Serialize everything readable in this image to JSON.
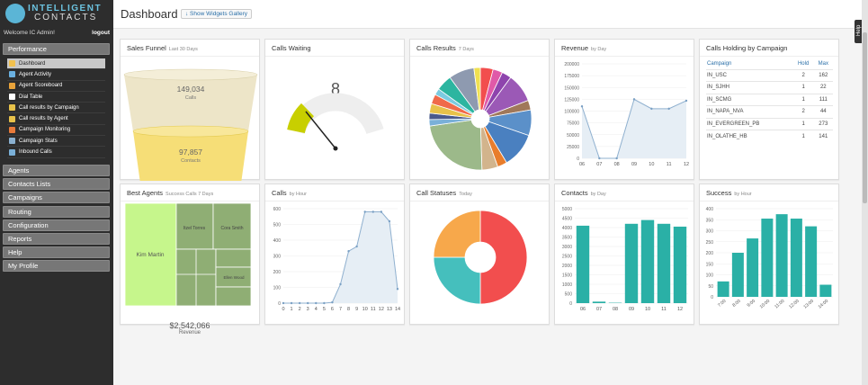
{
  "brand": {
    "line1": "INTELLIGENT",
    "line2": "CONTACTS"
  },
  "user": {
    "welcome": "Welcome IC Admin!",
    "logout": "logout"
  },
  "nav": {
    "performance": "Performance",
    "sub": [
      {
        "label": "Dashboard",
        "active": true,
        "icon": "dashboard-icon",
        "color": "#f2c14e"
      },
      {
        "label": "Agent Activity",
        "icon": "agent-icon",
        "color": "#6ab0e0"
      },
      {
        "label": "Agent Scoreboard",
        "icon": "scoreboard-icon",
        "color": "#e8a33a"
      },
      {
        "label": "Dial Table",
        "icon": "table-icon",
        "color": "#ffffff"
      },
      {
        "label": "Call results by Campaign",
        "icon": "chart-icon",
        "color": "#e8c24a"
      },
      {
        "label": "Call results by Agent",
        "icon": "chart-icon",
        "color": "#e8c24a"
      },
      {
        "label": "Campaign Monitoring",
        "icon": "monitor-icon",
        "color": "#e87a3a"
      },
      {
        "label": "Campaign Stats",
        "icon": "stats-icon",
        "color": "#8ab0d0"
      },
      {
        "label": "Inbound Calls",
        "icon": "inbound-icon",
        "color": "#7ab0d8"
      }
    ],
    "sections": [
      "Agents",
      "Contacts Lists",
      "Campaigns",
      "Routing",
      "Configuration",
      "Reports",
      "Help",
      "My Profile"
    ]
  },
  "page": {
    "title": "Dashboard",
    "show_widgets": "↓ Show Widgets Gallery",
    "help_tab": "Help"
  },
  "widgets": {
    "funnel": {
      "title": "Sales Funnel",
      "sub": "Last 30 Days",
      "calls_value": "149,034",
      "calls_label": "Calls",
      "contacts_value": "97,857",
      "contacts_label": "Contacts",
      "revenue_value": "$2,542,066",
      "revenue_label": "Revenue"
    },
    "waiting": {
      "title": "Calls Waiting",
      "value": "8"
    },
    "results": {
      "title": "Calls Results",
      "sub": "7 Days"
    },
    "revenue": {
      "title": "Revenue",
      "sub": "by Day"
    },
    "holding": {
      "title": "Calls Holding by Campaign",
      "cols": [
        "Campaign",
        "Hold",
        "Max"
      ],
      "rows": [
        [
          "IN_USC",
          "2",
          "162"
        ],
        [
          "IN_SJHH",
          "1",
          "22"
        ],
        [
          "IN_SCMG",
          "1",
          "111"
        ],
        [
          "IN_NAPA_NVA",
          "2",
          "44"
        ],
        [
          "IN_EVERGREEN_PB",
          "1",
          "273"
        ],
        [
          "IN_OLATHE_HB",
          "1",
          "141"
        ]
      ]
    },
    "best": {
      "title": "Best Agents",
      "sub": "Success Calls 7 Days",
      "agents": [
        "Kim Martin",
        "Itzel Torres",
        "Cora Smith",
        "Ellen Wood"
      ]
    },
    "calls_hour": {
      "title": "Calls",
      "sub": "by Hour"
    },
    "statuses": {
      "title": "Call Statuses",
      "sub": "Today"
    },
    "contacts": {
      "title": "Contacts",
      "sub": "by Day"
    },
    "success": {
      "title": "Success",
      "sub": "by Hour"
    }
  },
  "chart_data": [
    {
      "type": "pie",
      "title": "Calls Results",
      "values": [
        4,
        3,
        3,
        9,
        3,
        8,
        11,
        3,
        5,
        23,
        2,
        2,
        3,
        3,
        2,
        5,
        8,
        2
      ],
      "colors": [
        "#f24e4e",
        "#e05aa8",
        "#8e44ad",
        "#9b59b6",
        "#a0785a",
        "#5b90c9",
        "#4a80c0",
        "#e87d2c",
        "#d2b48c",
        "#9cb98a",
        "#7ab0d8",
        "#4a5a8c",
        "#e8c24a",
        "#f06a4a",
        "#7ccbe0",
        "#2cb5a0",
        "#8e9ab0",
        "#f0e050"
      ]
    },
    {
      "type": "line",
      "title": "Revenue",
      "x": [
        "06",
        "07",
        "08",
        "09",
        "10",
        "11",
        "12"
      ],
      "values": [
        110000,
        0,
        0,
        125000,
        105000,
        105000,
        122000
      ],
      "ylim": [
        0,
        200000
      ],
      "yticks": [
        0,
        25000,
        50000,
        75000,
        100000,
        125000,
        150000,
        175000,
        200000
      ]
    },
    {
      "type": "line",
      "title": "Calls",
      "x": [
        "0",
        "1",
        "2",
        "3",
        "4",
        "5",
        "6",
        "7",
        "8",
        "9",
        "10",
        "11",
        "12",
        "13",
        "14"
      ],
      "values": [
        0,
        0,
        0,
        0,
        0,
        0,
        5,
        120,
        330,
        360,
        580,
        580,
        580,
        520,
        90
      ],
      "ylim": [
        0,
        600
      ],
      "yticks": [
        0,
        100,
        200,
        300,
        400,
        500,
        600
      ]
    },
    {
      "type": "pie",
      "title": "Call Statuses",
      "values": [
        50,
        25,
        25
      ],
      "colors": [
        "#f24e4e",
        "#45bfbd",
        "#f7a84b"
      ]
    },
    {
      "type": "bar",
      "title": "Contacts",
      "categories": [
        "06",
        "07",
        "08",
        "09",
        "10",
        "11",
        "12"
      ],
      "values": [
        4100,
        80,
        20,
        4200,
        4400,
        4200,
        4050
      ],
      "ylim": [
        0,
        5000
      ],
      "yticks": [
        0,
        500,
        1000,
        1500,
        2000,
        2500,
        3000,
        3500,
        4000,
        4500,
        5000
      ],
      "color": "#2ab0a6"
    },
    {
      "type": "bar",
      "title": "Success",
      "categories": [
        "7:00",
        "8:00",
        "9:00",
        "10:00",
        "11:00",
        "12:00",
        "13:00",
        "14:00"
      ],
      "values": [
        70,
        200,
        265,
        355,
        375,
        355,
        320,
        55
      ],
      "ylim": [
        0,
        400
      ],
      "yticks": [
        0,
        50,
        100,
        150,
        200,
        250,
        300,
        350,
        400
      ],
      "color": "#2ab0a6"
    }
  ]
}
